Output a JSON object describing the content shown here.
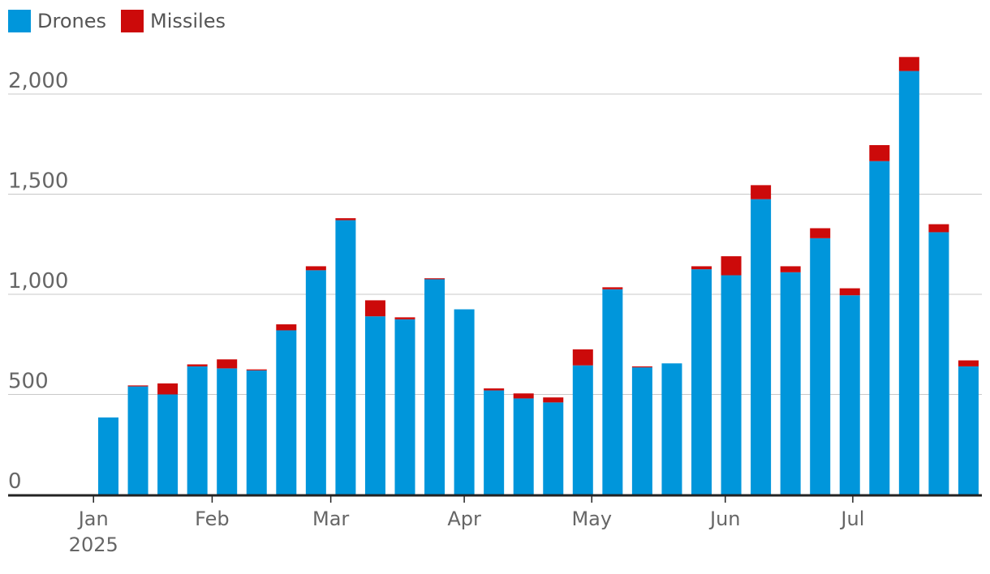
{
  "legend": {
    "drones_label": "Drones",
    "missiles_label": "Missiles"
  },
  "colors": {
    "drones": "#0096DB",
    "missiles": "#CC0A0A",
    "grid": "#c8c8c8",
    "axis": "#222222",
    "text": "#666666"
  },
  "chart_data": {
    "type": "bar",
    "stacked": true,
    "xaxis_ticks": [
      {
        "label": "Jan",
        "sub": "2025",
        "bar_index": -0.5
      },
      {
        "label": "Feb",
        "sub": "",
        "bar_index": 3.5
      },
      {
        "label": "Mar",
        "sub": "",
        "bar_index": 7.5
      },
      {
        "label": "Apr",
        "sub": "",
        "bar_index": 12.0
      },
      {
        "label": "May",
        "sub": "",
        "bar_index": 16.3
      },
      {
        "label": "Jun",
        "sub": "",
        "bar_index": 20.8
      },
      {
        "label": "Jul",
        "sub": "",
        "bar_index": 25.1
      }
    ],
    "yticks": [
      0,
      500,
      1000,
      1500,
      2000
    ],
    "yticklabels": [
      "0",
      "500",
      "1,000",
      "1,500",
      "2,000"
    ],
    "ylim": [
      0,
      2250
    ],
    "series": [
      {
        "name": "Drones",
        "values": [
          385,
          540,
          500,
          640,
          630,
          620,
          820,
          1120,
          1370,
          890,
          875,
          1075,
          925,
          520,
          480,
          460,
          645,
          1025,
          635,
          655,
          1125,
          1095,
          1475,
          1110,
          1280,
          995,
          1665,
          2115,
          1310,
          640
        ]
      },
      {
        "name": "Missiles",
        "values": [
          0,
          5,
          55,
          10,
          45,
          5,
          30,
          20,
          10,
          80,
          10,
          5,
          0,
          10,
          25,
          25,
          80,
          10,
          5,
          0,
          15,
          95,
          70,
          30,
          50,
          35,
          80,
          70,
          40,
          30
        ]
      }
    ]
  }
}
